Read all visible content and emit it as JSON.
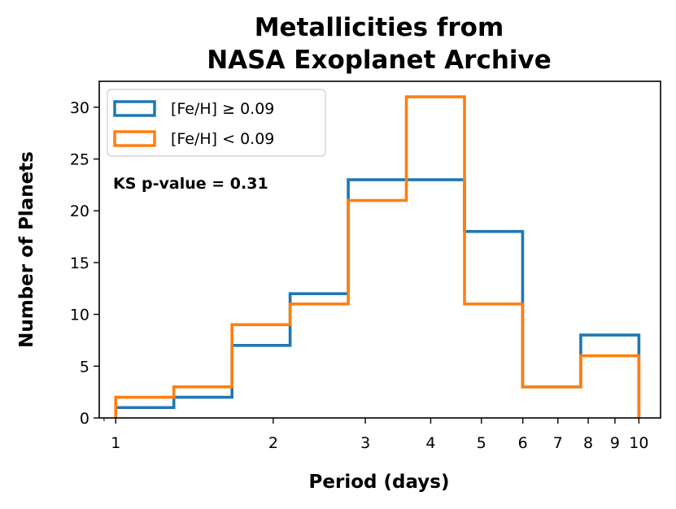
{
  "chart_data": {
    "type": "histogram",
    "title": [
      "Metallicities from",
      "NASA Exoplanet Archive"
    ],
    "xlabel": "Period (days)",
    "ylabel": "Number of Planets",
    "xscale": "log",
    "xlim": [
      0.93,
      11.0
    ],
    "ylim": [
      0,
      32.5
    ],
    "bin_edges": [
      1.0,
      1.2915,
      1.6681,
      2.1544,
      2.7826,
      3.5938,
      4.6416,
      5.9948,
      7.7426,
      10.0
    ],
    "series": [
      {
        "name": "[Fe/H] ≥ 0.09",
        "color": "#1f77b4",
        "counts": [
          1,
          2,
          7,
          12,
          23,
          23,
          18,
          3,
          8
        ]
      },
      {
        "name": "[Fe/H] < 0.09",
        "color": "#ff7f0e",
        "counts": [
          2,
          3,
          9,
          11,
          21,
          31,
          11,
          3,
          6
        ]
      }
    ],
    "xticks": [
      {
        "value": 1,
        "label": "1"
      },
      {
        "value": 2,
        "label": "2"
      },
      {
        "value": 3,
        "label": "3"
      },
      {
        "value": 4,
        "label": "4"
      },
      {
        "value": 5,
        "label": "5"
      },
      {
        "value": 6,
        "label": "6"
      },
      {
        "value": 7,
        "label": "7"
      },
      {
        "value": 8,
        "label": "8"
      },
      {
        "value": 9,
        "label": "9"
      },
      {
        "value": 10,
        "label": "10"
      }
    ],
    "yticks": [
      0,
      5,
      10,
      15,
      20,
      25,
      30
    ],
    "annotation": "KS p-value = 0.31",
    "legend_position": "top-left"
  }
}
